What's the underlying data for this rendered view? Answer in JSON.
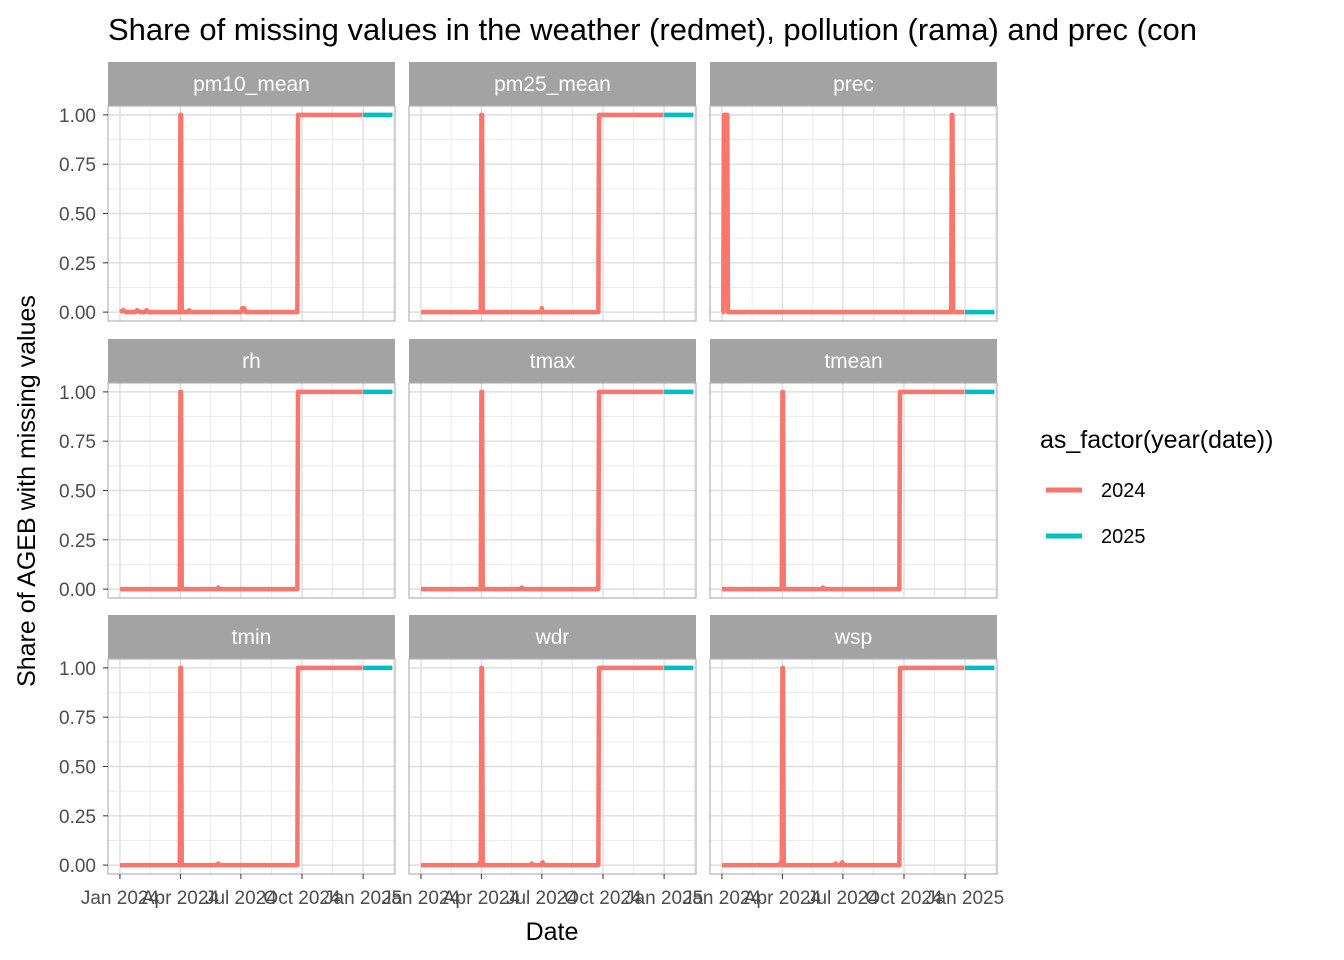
{
  "chart_data": {
    "type": "line",
    "title": "Share of missing values in the weather (redmet), pollution (rama) and prec (con",
    "xlabel": "Date",
    "ylabel": "Share of AGEB with missing values",
    "x_range": [
      "2023-12-14",
      "2025-02-18"
    ],
    "ylim": [
      -0.045,
      1.045
    ],
    "y_ticks": [
      0,
      0.25,
      0.5,
      0.75,
      1
    ],
    "y_tick_labels": [
      "0.00",
      "0.25",
      "0.50",
      "0.75",
      "1.00"
    ],
    "x_ticks": [
      "2024-01-01",
      "2024-04-01",
      "2024-07-01",
      "2024-10-01",
      "2025-01-01"
    ],
    "x_tick_labels": [
      "Jan 2024",
      "Apr 2024",
      "Jul 2024",
      "Oct 2024",
      "Jan 2025"
    ],
    "grid": true,
    "legend": {
      "title": "as_factor(year(date))",
      "placement": "right",
      "entries": [
        {
          "label": "2024",
          "color": "#F8766D"
        },
        {
          "label": "2025",
          "color": "#00BFC4"
        }
      ]
    },
    "panels": [
      {
        "name": "pm10_mean",
        "series": [
          {
            "name": "2024",
            "color": "#F8766D",
            "points": [
              [
                "2024-01-01",
                0
              ],
              [
                "2024-01-06",
                0.01
              ],
              [
                "2024-01-10",
                0
              ],
              [
                "2024-01-24",
                0
              ],
              [
                "2024-01-27",
                0.01
              ],
              [
                "2024-01-31",
                0
              ],
              [
                "2024-02-08",
                0
              ],
              [
                "2024-02-10",
                0.01
              ],
              [
                "2024-02-13",
                0
              ],
              [
                "2024-03-31",
                0
              ],
              [
                "2024-04-01",
                1
              ],
              [
                "2024-04-02",
                1
              ],
              [
                "2024-04-03",
                0
              ],
              [
                "2024-04-12",
                0
              ],
              [
                "2024-04-14",
                0.01
              ],
              [
                "2024-04-16",
                0
              ],
              [
                "2024-07-01",
                0
              ],
              [
                "2024-07-03",
                0.02
              ],
              [
                "2024-07-06",
                0.02
              ],
              [
                "2024-07-08",
                0
              ],
              [
                "2024-09-24",
                0
              ],
              [
                "2024-09-25",
                1
              ],
              [
                "2024-12-31",
                1
              ]
            ]
          },
          {
            "name": "2025",
            "color": "#00BFC4",
            "points": [
              [
                "2025-01-01",
                1
              ],
              [
                "2025-02-14",
                1
              ]
            ]
          }
        ]
      },
      {
        "name": "pm25_mean",
        "series": [
          {
            "name": "2024",
            "color": "#F8766D",
            "points": [
              [
                "2024-01-01",
                0
              ],
              [
                "2024-03-31",
                0
              ],
              [
                "2024-04-01",
                1
              ],
              [
                "2024-04-02",
                1
              ],
              [
                "2024-04-03",
                0
              ],
              [
                "2024-06-30",
                0
              ],
              [
                "2024-07-01",
                0.02
              ],
              [
                "2024-07-02",
                0
              ],
              [
                "2024-09-24",
                0
              ],
              [
                "2024-09-25",
                1
              ],
              [
                "2024-12-31",
                1
              ]
            ]
          },
          {
            "name": "2025",
            "color": "#00BFC4",
            "points": [
              [
                "2025-01-01",
                1
              ],
              [
                "2025-02-14",
                1
              ]
            ]
          }
        ]
      },
      {
        "name": "prec",
        "series": [
          {
            "name": "2024",
            "color": "#F8766D",
            "points": [
              [
                "2024-01-01",
                0
              ],
              [
                "2024-01-03",
                0
              ],
              [
                "2024-01-04",
                1
              ],
              [
                "2024-01-09",
                1
              ],
              [
                "2024-01-10",
                0
              ],
              [
                "2024-12-11",
                0
              ],
              [
                "2024-12-12",
                1
              ],
              [
                "2024-12-13",
                1
              ],
              [
                "2024-12-14",
                0
              ],
              [
                "2024-12-31",
                0
              ]
            ]
          },
          {
            "name": "2025",
            "color": "#00BFC4",
            "points": [
              [
                "2025-01-01",
                0
              ],
              [
                "2025-02-14",
                0
              ]
            ]
          }
        ]
      },
      {
        "name": "rh",
        "series": [
          {
            "name": "2024",
            "color": "#F8766D",
            "points": [
              [
                "2024-01-01",
                0
              ],
              [
                "2024-03-31",
                0
              ],
              [
                "2024-04-01",
                1
              ],
              [
                "2024-04-02",
                1
              ],
              [
                "2024-04-03",
                0
              ],
              [
                "2024-05-26",
                0
              ],
              [
                "2024-05-28",
                0.008
              ],
              [
                "2024-05-30",
                0
              ],
              [
                "2024-09-24",
                0
              ],
              [
                "2024-09-25",
                1
              ],
              [
                "2024-12-31",
                1
              ]
            ]
          },
          {
            "name": "2025",
            "color": "#00BFC4",
            "points": [
              [
                "2025-01-01",
                1
              ],
              [
                "2025-02-14",
                1
              ]
            ]
          }
        ]
      },
      {
        "name": "tmax",
        "series": [
          {
            "name": "2024",
            "color": "#F8766D",
            "points": [
              [
                "2024-01-01",
                0
              ],
              [
                "2024-03-31",
                0
              ],
              [
                "2024-04-01",
                1
              ],
              [
                "2024-04-02",
                1
              ],
              [
                "2024-04-03",
                0
              ],
              [
                "2024-05-30",
                0
              ],
              [
                "2024-06-01",
                0.008
              ],
              [
                "2024-06-03",
                0
              ],
              [
                "2024-09-24",
                0
              ],
              [
                "2024-09-25",
                1
              ],
              [
                "2024-12-31",
                1
              ]
            ]
          },
          {
            "name": "2025",
            "color": "#00BFC4",
            "points": [
              [
                "2025-01-01",
                1
              ],
              [
                "2025-02-14",
                1
              ]
            ]
          }
        ]
      },
      {
        "name": "tmean",
        "series": [
          {
            "name": "2024",
            "color": "#F8766D",
            "points": [
              [
                "2024-01-01",
                0
              ],
              [
                "2024-03-31",
                0
              ],
              [
                "2024-04-01",
                1
              ],
              [
                "2024-04-02",
                1
              ],
              [
                "2024-04-03",
                0
              ],
              [
                "2024-05-30",
                0
              ],
              [
                "2024-06-01",
                0.008
              ],
              [
                "2024-06-03",
                0
              ],
              [
                "2024-09-24",
                0
              ],
              [
                "2024-09-25",
                1
              ],
              [
                "2024-12-31",
                1
              ]
            ]
          },
          {
            "name": "2025",
            "color": "#00BFC4",
            "points": [
              [
                "2025-01-01",
                1
              ],
              [
                "2025-02-14",
                1
              ]
            ]
          }
        ]
      },
      {
        "name": "tmin",
        "series": [
          {
            "name": "2024",
            "color": "#F8766D",
            "points": [
              [
                "2024-01-01",
                0
              ],
              [
                "2024-03-31",
                0
              ],
              [
                "2024-04-01",
                1
              ],
              [
                "2024-04-02",
                1
              ],
              [
                "2024-04-03",
                0
              ],
              [
                "2024-05-26",
                0
              ],
              [
                "2024-05-28",
                0.008
              ],
              [
                "2024-05-30",
                0
              ],
              [
                "2024-09-24",
                0
              ],
              [
                "2024-09-25",
                1
              ],
              [
                "2024-12-31",
                1
              ]
            ]
          },
          {
            "name": "2025",
            "color": "#00BFC4",
            "points": [
              [
                "2025-01-01",
                1
              ],
              [
                "2025-02-14",
                1
              ]
            ]
          }
        ]
      },
      {
        "name": "wdr",
        "series": [
          {
            "name": "2024",
            "color": "#F8766D",
            "points": [
              [
                "2024-01-01",
                0
              ],
              [
                "2024-03-27",
                0
              ],
              [
                "2024-03-29",
                0.01
              ],
              [
                "2024-03-31",
                0
              ],
              [
                "2024-04-01",
                1
              ],
              [
                "2024-04-02",
                1
              ],
              [
                "2024-04-03",
                0
              ],
              [
                "2024-06-14",
                0
              ],
              [
                "2024-06-16",
                0.008
              ],
              [
                "2024-06-18",
                0
              ],
              [
                "2024-06-30",
                0
              ],
              [
                "2024-07-02",
                0.015
              ],
              [
                "2024-07-04",
                0
              ],
              [
                "2024-09-24",
                0
              ],
              [
                "2024-09-25",
                1
              ],
              [
                "2024-12-31",
                1
              ]
            ]
          },
          {
            "name": "2025",
            "color": "#00BFC4",
            "points": [
              [
                "2025-01-01",
                1
              ],
              [
                "2025-02-14",
                1
              ]
            ]
          }
        ]
      },
      {
        "name": "wsp",
        "series": [
          {
            "name": "2024",
            "color": "#F8766D",
            "points": [
              [
                "2024-01-01",
                0
              ],
              [
                "2024-03-27",
                0
              ],
              [
                "2024-03-29",
                0.01
              ],
              [
                "2024-03-31",
                0
              ],
              [
                "2024-04-01",
                1
              ],
              [
                "2024-04-02",
                1
              ],
              [
                "2024-04-03",
                0
              ],
              [
                "2024-06-18",
                0
              ],
              [
                "2024-06-20",
                0.008
              ],
              [
                "2024-06-22",
                0
              ],
              [
                "2024-06-28",
                0
              ],
              [
                "2024-06-30",
                0.015
              ],
              [
                "2024-07-02",
                0
              ],
              [
                "2024-09-24",
                0
              ],
              [
                "2024-09-25",
                1
              ],
              [
                "2024-12-31",
                1
              ]
            ]
          },
          {
            "name": "2025",
            "color": "#00BFC4",
            "points": [
              [
                "2025-01-01",
                1
              ],
              [
                "2025-02-14",
                1
              ]
            ]
          }
        ]
      }
    ]
  }
}
